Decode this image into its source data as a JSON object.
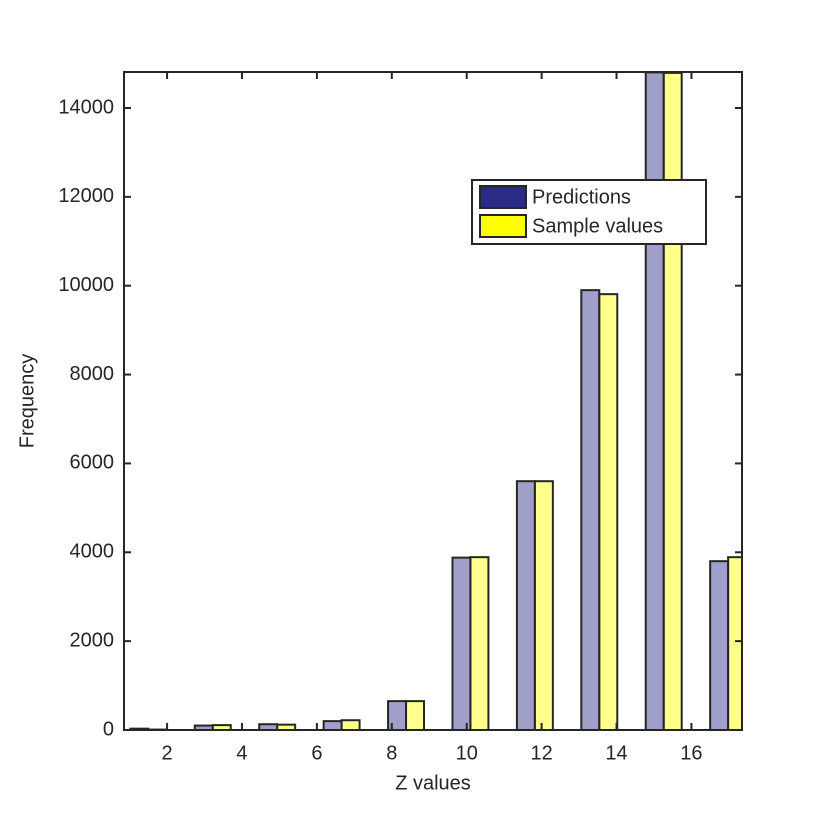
{
  "chart_data": {
    "type": "bar",
    "xlabel": "Z values",
    "ylabel": "Frequency",
    "x": [
      1.5,
      3.22,
      4.94,
      6.66,
      8.38,
      10.1,
      11.82,
      13.54,
      15.26,
      16.98
    ],
    "series": [
      {
        "name": "Predictions",
        "color": "#2b2a87",
        "values": [
          30,
          100,
          130,
          200,
          650,
          3880,
          5600,
          9900,
          14800,
          3800
        ]
      },
      {
        "name": "Sample values",
        "color": "#ffff00",
        "values": [
          10,
          110,
          120,
          220,
          650,
          3890,
          5600,
          9810,
          14790,
          3890
        ]
      }
    ],
    "xlim": [
      0.85,
      17.35
    ],
    "xticks": [
      2,
      4,
      6,
      8,
      10,
      12,
      14,
      16
    ],
    "ylim": [
      0,
      14810
    ],
    "yticks": [
      0,
      2000,
      4000,
      6000,
      8000,
      10000,
      12000,
      14000
    ],
    "legend": "upper right"
  }
}
